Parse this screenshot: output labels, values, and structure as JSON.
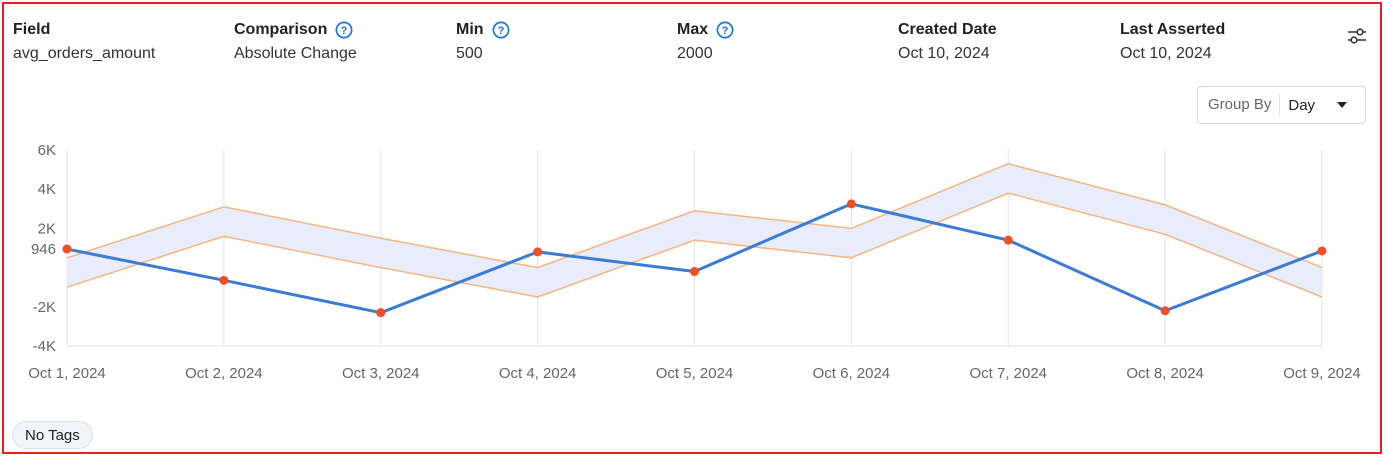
{
  "header": {
    "field": {
      "label": "Field",
      "value": "avg_orders_amount"
    },
    "comparison": {
      "label": "Comparison",
      "value": "Absolute Change"
    },
    "min": {
      "label": "Min",
      "value": "500"
    },
    "max": {
      "label": "Max",
      "value": "2000"
    },
    "created": {
      "label": "Created Date",
      "value": "Oct 10, 2024"
    },
    "last_asserted": {
      "label": "Last Asserted",
      "value": "Oct 10, 2024"
    }
  },
  "group_by": {
    "label": "Group By",
    "value": "Day"
  },
  "tags": {
    "label": "No Tags"
  },
  "colors": {
    "line": "#3a7bd5",
    "point": "#f04e23",
    "band_fill": "#e8ecfb",
    "band_stroke": "#f5b57f",
    "help_icon": "#1a73e8",
    "frame": "#ee1c1c"
  },
  "chart_data": {
    "type": "line",
    "x": [
      "Oct 1, 2024",
      "Oct 2, 2024",
      "Oct 3, 2024",
      "Oct 4, 2024",
      "Oct 5, 2024",
      "Oct 6, 2024",
      "Oct 7, 2024",
      "Oct 8, 2024",
      "Oct 9, 2024"
    ],
    "y_ticks": [
      {
        "value": 6000,
        "label": "6K"
      },
      {
        "value": 4000,
        "label": "4K"
      },
      {
        "value": 2000,
        "label": "2K"
      },
      {
        "value": 946,
        "label": "946"
      },
      {
        "value": -2000,
        "label": "-2K"
      },
      {
        "value": -4000,
        "label": "-4K"
      }
    ],
    "ylim": [
      -4000,
      6000
    ],
    "series": [
      {
        "values": [
          946,
          -650,
          -2300,
          800,
          -200,
          3250,
          1400,
          -2200,
          850
        ]
      }
    ],
    "band": {
      "upper": [
        500,
        3100,
        1500,
        0,
        2900,
        2000,
        5300,
        3200,
        0
      ],
      "lower": [
        -1000,
        1600,
        0,
        -1500,
        1400,
        500,
        3800,
        1700,
        -1500
      ]
    },
    "grid": "vertical"
  }
}
